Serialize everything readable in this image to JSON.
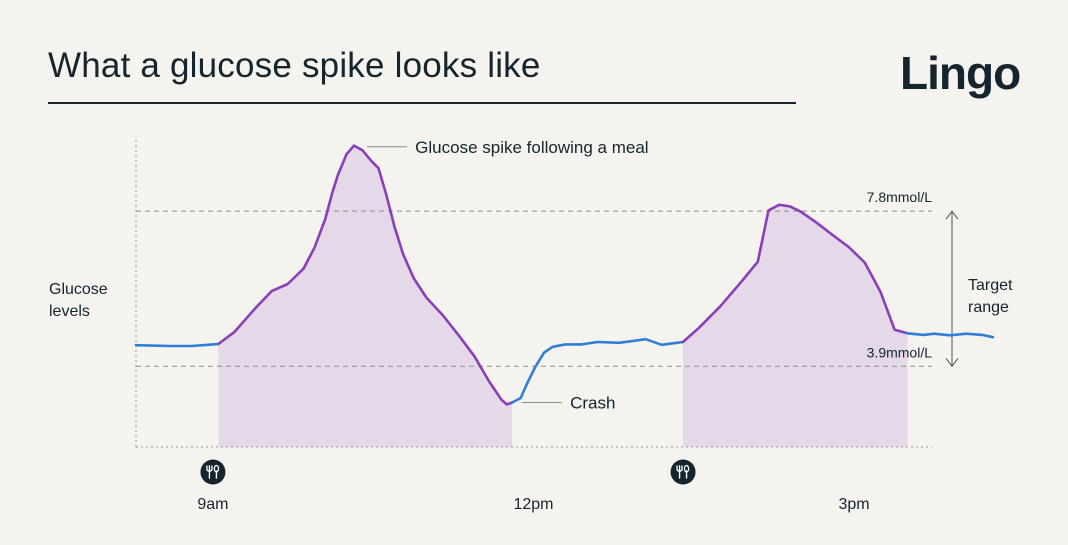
{
  "header": {
    "title": "What a glucose spike looks like",
    "brand": "Lingo"
  },
  "labels": {
    "y_axis": [
      "Glucose",
      "levels"
    ],
    "target_range": [
      "Target",
      "range"
    ]
  },
  "colors": {
    "background": "#f5f3ee",
    "text": "#14252e",
    "normal_line": "#2f7fd6",
    "spike_line": "#8a3fb8",
    "spike_fill": "#e4d8e9",
    "meal_icon_bg": "#14252e"
  },
  "icons": {
    "meal_marker": "fork-knife-icon"
  },
  "chart_data": {
    "type": "area",
    "title": "What a glucose spike looks like",
    "ylabel": "Glucose levels",
    "xlabel": "",
    "x_unit": "hours",
    "x_range": [
      8.28,
      15.73
    ],
    "y_range": [
      1.87,
      9.59
    ],
    "y_unit": "mmol/L",
    "x_ticks": [
      {
        "x": 9,
        "label": "9am"
      },
      {
        "x": 12,
        "label": "12pm"
      },
      {
        "x": 15,
        "label": "3pm"
      }
    ],
    "reference_lines": [
      {
        "y": 7.8,
        "label": "7.8mmol/L"
      },
      {
        "y": 3.9,
        "label": "3.9mmol/L"
      }
    ],
    "target_range": {
      "low": 3.9,
      "high": 7.8,
      "label": "Target range"
    },
    "meal_markers": [
      {
        "x": 9.0
      },
      {
        "x": 13.4
      }
    ],
    "annotations": [
      {
        "x": 10.35,
        "y": 9.42,
        "text": "Glucose spike following a meal"
      },
      {
        "x": 11.8,
        "y": 2.99,
        "text": "Crash"
      }
    ],
    "series": [
      {
        "color": "#2f7fd6",
        "segment": "normal",
        "points": [
          [
            8.28,
            4.43
          ],
          [
            8.6,
            4.41
          ],
          [
            8.8,
            4.41
          ],
          [
            9.0,
            4.45
          ],
          [
            9.05,
            4.46
          ]
        ]
      },
      {
        "color": "#8a3fb8",
        "segment": "spike",
        "shaded": true,
        "points": [
          [
            9.05,
            4.46
          ],
          [
            9.2,
            4.76
          ],
          [
            9.4,
            5.37
          ],
          [
            9.55,
            5.79
          ],
          [
            9.7,
            5.97
          ],
          [
            9.85,
            6.36
          ],
          [
            9.95,
            6.88
          ],
          [
            10.05,
            7.59
          ],
          [
            10.12,
            8.29
          ],
          [
            10.17,
            8.71
          ],
          [
            10.25,
            9.23
          ],
          [
            10.32,
            9.45
          ],
          [
            10.4,
            9.33
          ],
          [
            10.48,
            9.07
          ],
          [
            10.55,
            8.88
          ],
          [
            10.62,
            8.24
          ],
          [
            10.7,
            7.4
          ],
          [
            10.78,
            6.72
          ],
          [
            10.88,
            6.11
          ],
          [
            11.0,
            5.62
          ],
          [
            11.15,
            5.19
          ],
          [
            11.3,
            4.68
          ],
          [
            11.45,
            4.14
          ],
          [
            11.58,
            3.54
          ],
          [
            11.7,
            3.06
          ],
          [
            11.75,
            2.94
          ],
          [
            11.8,
            2.99
          ]
        ]
      },
      {
        "color": "#2f7fd6",
        "segment": "normal",
        "points": [
          [
            11.8,
            2.99
          ],
          [
            11.88,
            3.1
          ],
          [
            11.95,
            3.52
          ],
          [
            12.02,
            3.9
          ],
          [
            12.1,
            4.25
          ],
          [
            12.18,
            4.39
          ],
          [
            12.3,
            4.45
          ],
          [
            12.45,
            4.45
          ],
          [
            12.6,
            4.51
          ],
          [
            12.8,
            4.49
          ],
          [
            13.05,
            4.58
          ],
          [
            13.2,
            4.44
          ],
          [
            13.4,
            4.51
          ]
        ]
      },
      {
        "color": "#8a3fb8",
        "segment": "spike",
        "shaded": true,
        "points": [
          [
            13.4,
            4.51
          ],
          [
            13.55,
            4.87
          ],
          [
            13.75,
            5.41
          ],
          [
            13.95,
            6.04
          ],
          [
            14.1,
            6.53
          ],
          [
            14.2,
            7.82
          ],
          [
            14.3,
            7.96
          ],
          [
            14.4,
            7.92
          ],
          [
            14.5,
            7.79
          ],
          [
            14.65,
            7.51
          ],
          [
            14.8,
            7.2
          ],
          [
            14.95,
            6.9
          ],
          [
            15.1,
            6.51
          ],
          [
            15.25,
            5.76
          ],
          [
            15.38,
            4.82
          ],
          [
            15.5,
            4.73
          ]
        ]
      },
      {
        "color": "#2f7fd6",
        "segment": "normal",
        "points": [
          [
            15.5,
            4.73
          ],
          [
            15.65,
            4.69
          ],
          [
            15.75,
            4.72
          ],
          [
            15.9,
            4.68
          ],
          [
            16.05,
            4.72
          ],
          [
            16.2,
            4.69
          ],
          [
            16.3,
            4.63
          ]
        ]
      }
    ]
  }
}
